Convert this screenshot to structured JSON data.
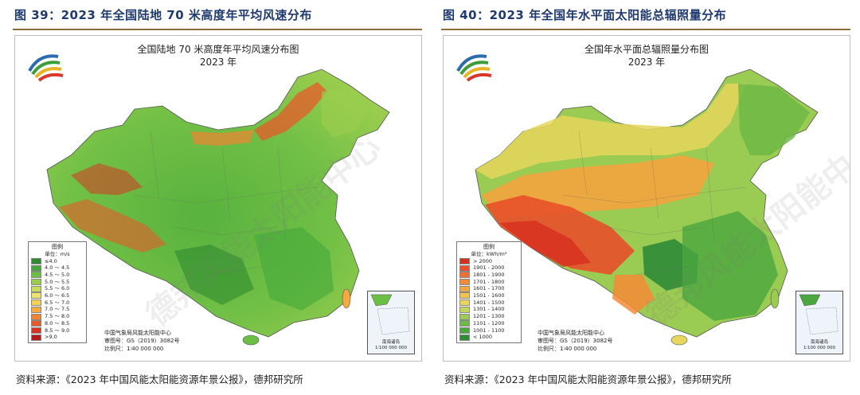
{
  "left": {
    "figure_title": "图 39：2023 年全国陆地 70 米高度年平均风速分布",
    "map_title_line1": "全国陆地 70 米高度年平均风速分布图",
    "map_title_line2": "2023 年",
    "legend": {
      "title": "图例",
      "unit": "单位：m/s",
      "items": [
        {
          "label": "≤4.0",
          "color": "#2e8b2e"
        },
        {
          "label": "4.0 ～ 4.5",
          "color": "#45a83a"
        },
        {
          "label": "4.5 ～ 5.0",
          "color": "#6cbf45"
        },
        {
          "label": "5.0 ～ 5.5",
          "color": "#9acd4e"
        },
        {
          "label": "5.5 ～ 6.0",
          "color": "#c6dc5a"
        },
        {
          "label": "6.0 ～ 6.5",
          "color": "#ece46a"
        },
        {
          "label": "6.5 ～ 7.0",
          "color": "#f6cf55"
        },
        {
          "label": "7.0 ～ 7.5",
          "color": "#f5a93f"
        },
        {
          "label": "7.5 ～ 8.0",
          "color": "#f08432"
        },
        {
          "label": "8.0 ～ 8.5",
          "color": "#e85a2a"
        },
        {
          "label": "8.5 ～ 9.0",
          "color": "#d93422"
        },
        {
          "label": ">9.0",
          "color": "#b51a1a"
        }
      ]
    },
    "credit_org": "中国气象局风能太阳能中心",
    "credit_no": "审图号：GS（2019）3082号",
    "credit_scale": "比例尺：1∶40 000 000",
    "inset_caption": "南海诸岛",
    "inset_scale": "1∶100 000 000",
    "source": "资料来源：《2023 年中国风能太阳能资源年景公报》，德邦研究所",
    "watermark": "德邦风能太阳能中心"
  },
  "right": {
    "figure_title": "图 40：2023 年全国年水平面太阳能总辐照量分布",
    "map_title_line1": "全国年水平面总辐照量分布图",
    "map_title_line2": "2023 年",
    "legend": {
      "title": "图例",
      "unit": "单位：kWh/m²",
      "items": [
        {
          "label": "> 2000",
          "color": "#d7301f"
        },
        {
          "label": "1901 - 2000",
          "color": "#e8502a"
        },
        {
          "label": "1801 - 1900",
          "color": "#ef6f30"
        },
        {
          "label": "1701 - 1800",
          "color": "#f48b36"
        },
        {
          "label": "1601 - 1700",
          "color": "#f6a640"
        },
        {
          "label": "1501 - 1600",
          "color": "#f4c24f"
        },
        {
          "label": "1401 - 1500",
          "color": "#e6d65c"
        },
        {
          "label": "1301 - 1400",
          "color": "#c4d65a"
        },
        {
          "label": "1201 - 1300",
          "color": "#9acb52"
        },
        {
          "label": "1101 - 1200",
          "color": "#6fb947"
        },
        {
          "label": "1001 - 1100",
          "color": "#4aa63e"
        },
        {
          "label": "< 1000",
          "color": "#2f8c36"
        }
      ]
    },
    "credit_org": "中国气象局风能太阳能中心",
    "credit_no": "审图号：GS（2019）3082号",
    "credit_scale": "比例尺：1∶40 000 000",
    "inset_caption": "南海诸岛",
    "inset_scale": "1∶100 000 000",
    "source": "资料来源：《2023 年中国风能太阳能资源年景公报》，德邦研究所",
    "watermark": "德邦风能太阳能中心"
  }
}
